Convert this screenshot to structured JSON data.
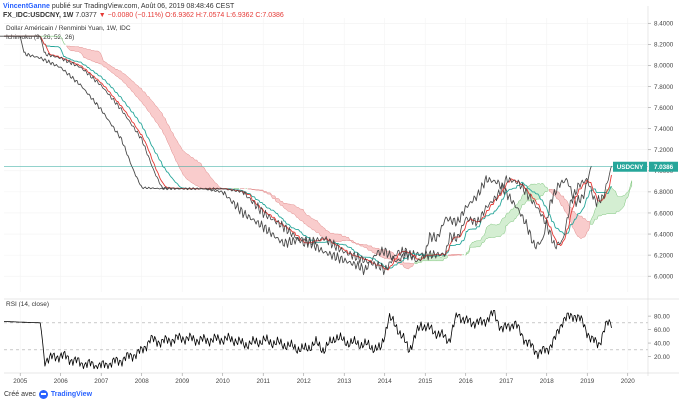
{
  "header": {
    "author": "VincentGanne",
    "published": "publié sur TradingView.com, Août 06, 2019 08:48:46 CEST",
    "symbol": "FX_IDC:USDCNY, 1W",
    "last": "7.0377",
    "change": "−0.0080 (−0.11%)",
    "ohlc": "O:6.9362 H:7.0574 L:6.9362 C:7.0386"
  },
  "legend": {
    "pair_title": "Dollar Américain / Renminbi Yuan, 1W, IDC",
    "indicator": "Ichimoku (9, 26, 52, 26)"
  },
  "rsi": {
    "label": "RSI (14, close)"
  },
  "price_tag": {
    "symbol": "USDCNY",
    "value": "7.0386"
  },
  "footer": {
    "created_with": "Créé avec",
    "brand": "TradingView"
  },
  "colors": {
    "price": "#444444",
    "tenkan": "#e53935",
    "kijun": "#26a69a",
    "cloud_bear": "#f8c6c6",
    "cloud_bull": "#cfeccd",
    "lagging": "#4a4a4a",
    "last_line": "#26a69a",
    "rsi_line": "#000000"
  },
  "chart_data": [
    {
      "type": "line",
      "title": "Dollar Américain / Renminbi Yuan, 1W, IDC",
      "x_ticks": [
        "2005",
        "2006",
        "2007",
        "2008",
        "2009",
        "2010",
        "2011",
        "2012",
        "2013",
        "2014",
        "2015",
        "2016",
        "2017",
        "2018",
        "2019",
        "2020"
      ],
      "y_ticks": [
        "6.0000",
        "6.2000",
        "6.4000",
        "6.6000",
        "6.8000",
        "7.0000",
        "7.2000",
        "7.4000",
        "7.6000",
        "7.8000",
        "8.0000",
        "8.2000",
        "8.4000"
      ],
      "ylim": [
        5.85,
        8.45
      ],
      "xlim": [
        2004.6,
        2020.5
      ],
      "last_value": 7.0386,
      "series": [
        {
          "x": [
            2004.6,
            2005.5,
            2005.6,
            2006.0,
            2006.5,
            2007.0,
            2007.5,
            2008.0,
            2008.3,
            2008.5,
            2009.0,
            2009.5,
            2010.0,
            2010.5,
            2010.8,
            2011.0,
            2011.5,
            2012.0,
            2012.5,
            2013.0,
            2013.5,
            2013.9,
            2014.0,
            2014.3,
            2014.5,
            2014.8,
            2015.0,
            2015.5,
            2015.6,
            2015.8,
            2016.0,
            2016.3,
            2016.5,
            2016.8,
            2017.0,
            2017.3,
            2017.5,
            2017.8,
            2018.0,
            2018.2,
            2018.4,
            2018.6,
            2018.8,
            2019.0,
            2019.2,
            2019.4,
            2019.5,
            2019.6
          ],
          "values": [
            8.277,
            8.277,
            8.11,
            8.07,
            7.98,
            7.81,
            7.58,
            7.3,
            7.0,
            6.84,
            6.83,
            6.83,
            6.83,
            6.8,
            6.68,
            6.6,
            6.47,
            6.31,
            6.36,
            6.23,
            6.15,
            6.09,
            6.05,
            6.22,
            6.24,
            6.14,
            6.2,
            6.21,
            6.38,
            6.36,
            6.55,
            6.51,
            6.65,
            6.77,
            6.92,
            6.89,
            6.79,
            6.63,
            6.49,
            6.28,
            6.34,
            6.71,
            6.87,
            6.92,
            6.7,
            6.75,
            6.9,
            7.04
          ]
        },
        {
          "name": "RSI",
          "y_ticks": [
            "20.00",
            "40.00",
            "60.00",
            "80.00"
          ],
          "ylim": [
            0,
            95
          ],
          "x": [
            2004.6,
            2005.5,
            2005.6,
            2006.0,
            2006.5,
            2007.0,
            2007.5,
            2008.0,
            2008.2,
            2008.5,
            2009.0,
            2009.5,
            2010.0,
            2010.3,
            2010.5,
            2010.8,
            2011.0,
            2011.5,
            2012.0,
            2012.3,
            2012.5,
            2012.8,
            2013.0,
            2013.5,
            2013.9,
            2014.1,
            2014.3,
            2014.6,
            2014.9,
            2015.2,
            2015.6,
            2015.8,
            2016.0,
            2016.4,
            2016.7,
            2016.9,
            2017.2,
            2017.5,
            2017.8,
            2018.0,
            2018.2,
            2018.4,
            2018.7,
            2018.9,
            2019.1,
            2019.3,
            2019.5,
            2019.6
          ],
          "values": [
            72,
            70,
            15,
            22,
            10,
            6,
            15,
            28,
            45,
            42,
            48,
            44,
            46,
            45,
            38,
            41,
            44,
            38,
            30,
            40,
            30,
            50,
            42,
            38,
            30,
            78,
            64,
            30,
            68,
            58,
            45,
            84,
            72,
            70,
            84,
            60,
            70,
            42,
            25,
            30,
            45,
            75,
            82,
            70,
            44,
            40,
            70,
            72
          ]
        }
      ]
    }
  ]
}
